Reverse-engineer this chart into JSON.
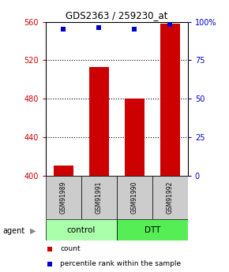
{
  "title": "GDS2363 / 259230_at",
  "samples": [
    "GSM91989",
    "GSM91991",
    "GSM91990",
    "GSM91992"
  ],
  "bar_values": [
    410,
    513,
    480,
    558
  ],
  "percentile_values": [
    95,
    96,
    95,
    98
  ],
  "bar_color": "#cc0000",
  "dot_color": "#0000cc",
  "ylim": [
    400,
    560
  ],
  "yticks_left": [
    400,
    440,
    480,
    520,
    560
  ],
  "yticks_right": [
    0,
    25,
    50,
    75,
    100
  ],
  "ylabel_right_labels": [
    "0",
    "25",
    "50",
    "75",
    "100%"
  ],
  "group_labels": [
    "control",
    "DTT"
  ],
  "group_colors": [
    "#aaffaa",
    "#55ee55"
  ],
  "group_ranges": [
    [
      0,
      2
    ],
    [
      2,
      4
    ]
  ],
  "agent_label": "agent",
  "legend_count_label": "count",
  "legend_pct_label": "percentile rank within the sample",
  "bar_width": 0.55,
  "plot_bg": "#ffffff",
  "axis_color_left": "#cc0000",
  "axis_color_right": "#0000cc",
  "sample_box_color": "#cccccc",
  "title_fontsize": 8.5,
  "tick_fontsize": 7,
  "legend_fontsize": 6.5
}
